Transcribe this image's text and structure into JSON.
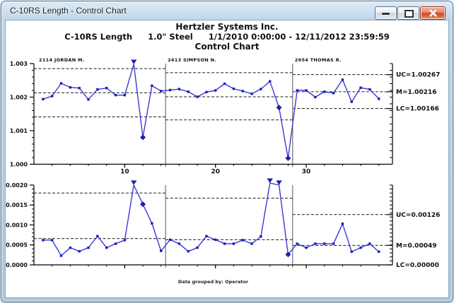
{
  "window": {
    "title": "C-10RS Length - Control Chart"
  },
  "header": {
    "company": "Hertzler Systems Inc.",
    "subtitle_parts": [
      "C-10RS Length",
      "1.0\" Steel",
      "1/1/2010 0:00:00 - 12/11/2012 23:59:59"
    ],
    "title": "Control Chart"
  },
  "footer": {
    "grouped_by": "Data grouped by: Operator"
  },
  "colors": {
    "series_line": "#3a3ad9",
    "marker": "#1f1fae",
    "limit_line": "#1a1a1a",
    "axis": "#000000",
    "separator": "#555555"
  },
  "chart_data": [
    {
      "type": "line",
      "name": "averages-control-chart",
      "ylim": [
        1.0,
        1.003
      ],
      "yticks": [
        {
          "v": 1.0,
          "label": "1.000"
        },
        {
          "v": 1.001,
          "label": "1.001"
        },
        {
          "v": 1.002,
          "label": "1.002"
        },
        {
          "v": 1.003,
          "label": "1.003"
        }
      ],
      "y_minor": 0.0002,
      "xlim": [
        0,
        39.5
      ],
      "xticks": [
        {
          "v": 10,
          "label": "10"
        },
        {
          "v": 20,
          "label": "20"
        },
        {
          "v": 30,
          "label": "30"
        }
      ],
      "x_minor": 2,
      "show_x_labels": true,
      "show_group_labels": true,
      "values": [
        1.00194,
        1.00203,
        1.00241,
        1.00229,
        1.00227,
        1.00193,
        1.00223,
        1.00227,
        1.00206,
        1.00206,
        1.00298,
        1.0008,
        1.00234,
        1.00218,
        1.00221,
        1.00224,
        1.00216,
        1.00201,
        1.00215,
        1.0022,
        1.0024,
        1.00225,
        1.00218,
        1.0021,
        1.00224,
        1.00247,
        1.00169,
        1.00018,
        1.0022,
        1.0022,
        1.002,
        1.00216,
        1.00212,
        1.00252,
        1.00186,
        1.00228,
        1.00223,
        1.00195
      ],
      "flags": {
        "11": "triangle-down",
        "12": "diamond",
        "27": "diamond",
        "28": "diamond"
      },
      "groups": [
        {
          "label": "2114 JORDAN M.",
          "from": 1,
          "to": 14,
          "uc": 1.00285,
          "m": 1.00213,
          "lc": 1.00141
        },
        {
          "label": "2413 SIMPSON N.",
          "from": 15,
          "to": 28,
          "uc": 1.00273,
          "m": 1.00201,
          "lc": 1.00132
        },
        {
          "label": "2654 THOMAS R.",
          "from": 29,
          "to": 38,
          "uc": 1.00267,
          "m": 1.00216,
          "lc": 1.00166
        }
      ],
      "right_labels": [
        {
          "text": "UC=1.00267",
          "v": 1.00267
        },
        {
          "text": "M=1.00216",
          "v": 1.00216
        },
        {
          "text": "LC=1.00166",
          "v": 1.00166
        }
      ]
    },
    {
      "type": "line",
      "name": "ranges-control-chart",
      "ylim": [
        0.0,
        0.002
      ],
      "yticks": [
        {
          "v": 0.0,
          "label": "0.0000"
        },
        {
          "v": 0.0005,
          "label": "0.0005"
        },
        {
          "v": 0.001,
          "label": "0.0010"
        },
        {
          "v": 0.0015,
          "label": "0.0015"
        },
        {
          "v": 0.002,
          "label": "0.0020"
        }
      ],
      "y_minor": 0.0001,
      "xlim": [
        0,
        39.5
      ],
      "xticks": [
        {
          "v": 10,
          "label": "10"
        },
        {
          "v": 20,
          "label": "20"
        },
        {
          "v": 30,
          "label": "30"
        }
      ],
      "x_minor": 2,
      "show_x_labels": false,
      "show_group_labels": false,
      "values": [
        0.00062,
        0.00062,
        0.00023,
        0.00043,
        0.00034,
        0.00043,
        0.00072,
        0.00043,
        0.00053,
        0.00062,
        0.002,
        0.00152,
        0.00104,
        0.00035,
        0.00063,
        0.00053,
        0.00034,
        0.00043,
        0.00072,
        0.00063,
        0.00053,
        0.00053,
        0.00062,
        0.00053,
        0.00071,
        0.00205,
        0.002,
        0.00026,
        0.00053,
        0.00043,
        0.00053,
        0.00053,
        0.00053,
        0.00103,
        0.00033,
        0.00043,
        0.00053,
        0.00033
      ],
      "flags": {
        "11": "triangle-down",
        "12": "diamond",
        "26": "triangle-down",
        "27": "triangle-down",
        "28": "diamond"
      },
      "groups": [
        {
          "label": "2114 JORDAN M.",
          "from": 1,
          "to": 14,
          "uc": 0.0018,
          "m": 0.00066,
          "lc": 0.0
        },
        {
          "label": "2413 SIMPSON N.",
          "from": 15,
          "to": 28,
          "uc": 0.00167,
          "m": 0.00063,
          "lc": 0.0
        },
        {
          "label": "2654 THOMAS R.",
          "from": 29,
          "to": 38,
          "uc": 0.00126,
          "m": 0.00049,
          "lc": 0.0
        }
      ],
      "right_labels": [
        {
          "text": "UC=0.00126",
          "v": 0.00126
        },
        {
          "text": "M=0.00049",
          "v": 0.00049
        },
        {
          "text": "LC=0.00000",
          "v": 0.0
        }
      ]
    }
  ]
}
